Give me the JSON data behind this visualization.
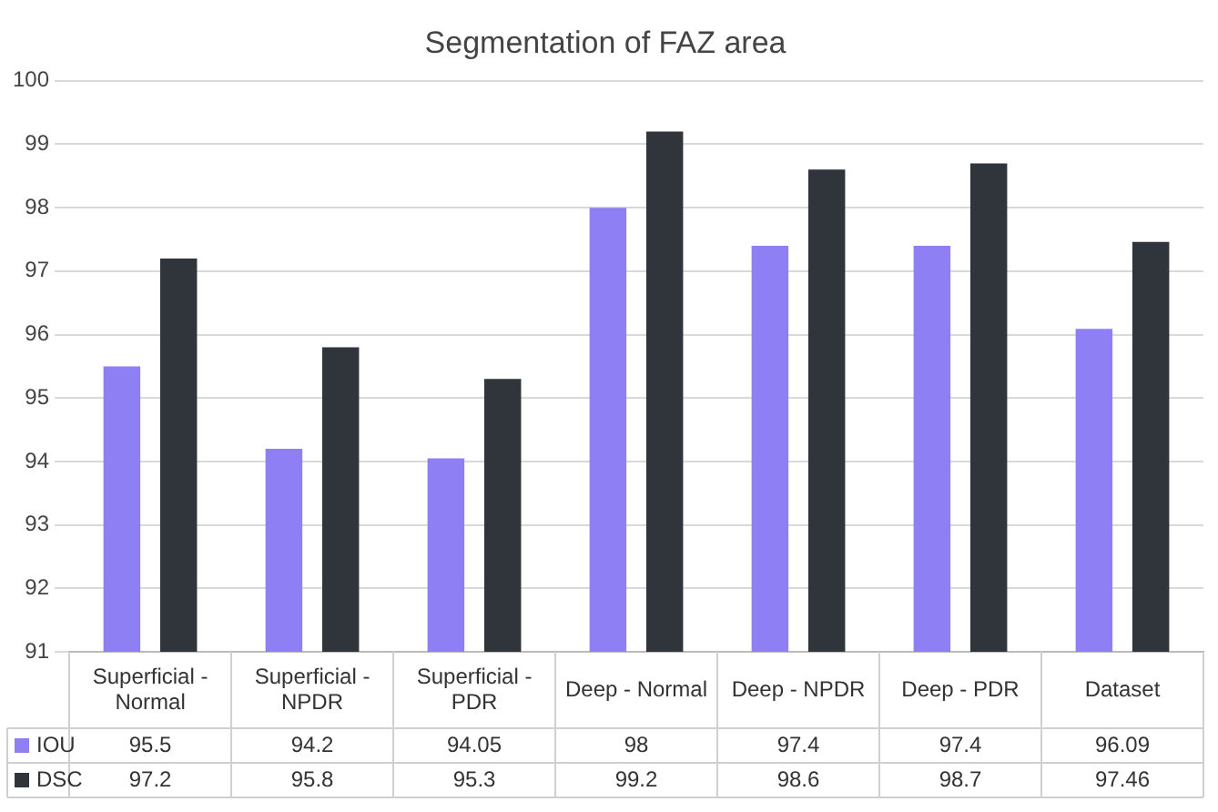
{
  "chart_data": {
    "type": "bar",
    "title": "Segmentation of FAZ area",
    "categories": [
      "Superficial - Normal",
      "Superficial - NPDR",
      "Superficial - PDR",
      "Deep - Normal",
      "Deep - NPDR",
      "Deep - PDR",
      "Dataset"
    ],
    "series": [
      {
        "name": "IOU",
        "color": "#8f7ff5",
        "values": [
          95.5,
          94.2,
          94.05,
          98,
          97.4,
          97.4,
          96.09
        ]
      },
      {
        "name": "DSC",
        "color": "#30343b",
        "values": [
          97.2,
          95.8,
          95.3,
          99.2,
          98.6,
          98.7,
          97.46
        ]
      }
    ],
    "ylim": [
      91,
      100
    ],
    "yticks": [
      91,
      92,
      93,
      94,
      95,
      96,
      97,
      98,
      99,
      100
    ],
    "grid": "y",
    "data_labels": true,
    "legend": "bottom left"
  }
}
